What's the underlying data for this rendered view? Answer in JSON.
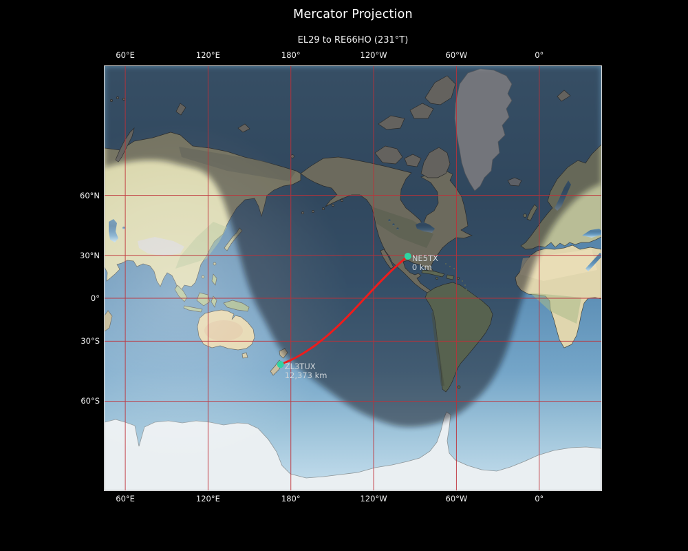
{
  "figure": {
    "title": "Mercator Projection",
    "subtitle": "EL29 to RE66HO (231°T)",
    "background_color": "#000000",
    "text_color": "#f2f2f2"
  },
  "chart_data": {
    "type": "map",
    "projection": "Mercator",
    "title": "Mercator Projection",
    "subtitle": "EL29 to RE66HO (231°T)",
    "extent": {
      "lon_left_deg_east": 45,
      "lon_span_deg": 360,
      "lat_top_deg": 84.2,
      "lat_bottom_deg": -80.2
    },
    "grid": {
      "color": "#bf3038",
      "lon_ticks_deg": [
        60,
        120,
        180,
        -120,
        -60,
        0
      ],
      "lat_ticks_deg": [
        60,
        30,
        0,
        -30,
        -60
      ]
    },
    "axis_labels": {
      "top": [
        "60°E",
        "120°E",
        "180°",
        "120°W",
        "60°W",
        "0°"
      ],
      "bottom": [
        "60°E",
        "120°E",
        "180°",
        "120°W",
        "60°W",
        "0°"
      ],
      "left": [
        "60°N",
        "30°N",
        "0°",
        "30°S",
        "60°S"
      ]
    },
    "stations": [
      {
        "callsign": "NE5TX",
        "grid_locator": "EL29",
        "lat": 29.4,
        "lon": -95.2,
        "distance_label": "0 km",
        "marker_color": "#2fd4a2"
      },
      {
        "callsign": "ZL3TUX",
        "grid_locator": "RE66HO",
        "lat": -43.6,
        "lon": 172.5,
        "distance_label": "12,373 km",
        "marker_color": "#2fd4a2"
      }
    ],
    "great_circle_path": {
      "from": "NE5TX",
      "to": "ZL3TUX",
      "bearing_true_deg": 231,
      "distance_km": 12373,
      "color": "#ee1c1c"
    },
    "day_night_shading": true,
    "station_label_color": "#cfd5d9"
  }
}
